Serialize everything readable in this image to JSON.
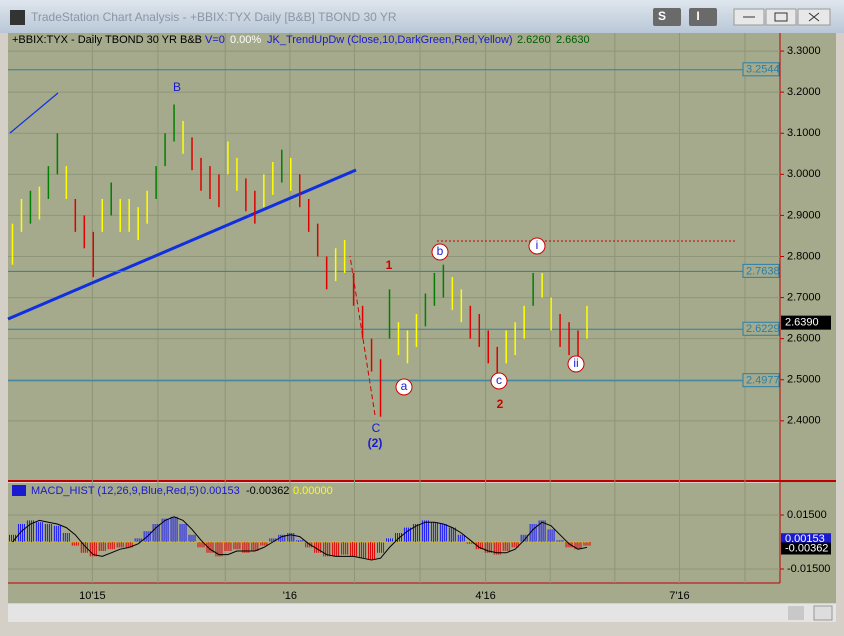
{
  "window": {
    "title": "TradeStation Chart Analysis - +BBIX:TYX Daily [B&B] TBOND 30 YR",
    "buttons": [
      "S",
      "I"
    ]
  },
  "chart_data": [
    {
      "type": "ohlc",
      "header": {
        "symbol": "+BBIX:TYX - Daily  TBOND 30 YR  B&B",
        "volume": "V=0",
        "change": "0.00%",
        "indicator": "JK_TrendUpDw (Close,10,DarkGreen,Red,Yellow)",
        "value1": "2.6260",
        "value2": "2.6630"
      },
      "high": [
        2.88,
        2.94,
        2.96,
        2.97,
        3.02,
        3.1,
        3.02,
        2.94,
        2.9,
        2.86,
        2.94,
        2.98,
        2.94,
        2.94,
        2.92,
        2.96,
        3.02,
        3.1,
        3.17,
        3.13,
        3.09,
        3.04,
        3.02,
        3.0,
        3.08,
        3.04,
        2.99,
        2.96,
        3.0,
        3.03,
        3.06,
        3.04,
        3.0,
        2.94,
        2.88,
        2.8,
        2.82,
        2.84,
        2.76,
        2.68,
        2.6,
        2.55,
        2.72,
        2.64,
        2.62,
        2.66,
        2.71,
        2.76,
        2.78,
        2.75,
        2.72,
        2.68,
        2.66,
        2.62,
        2.58,
        2.62,
        2.64,
        2.68,
        2.76,
        2.76,
        2.7,
        2.66,
        2.64,
        2.62,
        2.68
      ],
      "low": [
        2.78,
        2.86,
        2.88,
        2.89,
        2.94,
        3.0,
        2.94,
        2.86,
        2.82,
        2.75,
        2.86,
        2.9,
        2.86,
        2.86,
        2.84,
        2.88,
        2.94,
        3.02,
        3.08,
        3.05,
        3.01,
        2.96,
        2.94,
        2.92,
        3.0,
        2.96,
        2.91,
        2.88,
        2.92,
        2.95,
        2.98,
        2.96,
        2.92,
        2.86,
        2.8,
        2.72,
        2.74,
        2.76,
        2.68,
        2.6,
        2.52,
        2.41,
        2.6,
        2.56,
        2.54,
        2.58,
        2.63,
        2.68,
        2.7,
        2.67,
        2.64,
        2.6,
        2.58,
        2.54,
        2.5,
        2.54,
        2.56,
        2.6,
        2.68,
        2.7,
        2.62,
        2.58,
        2.56,
        2.54,
        2.6
      ],
      "colors": [
        "#ffff00",
        "#ffff00",
        "#008000",
        "#ffff00",
        "#008000",
        "#008000",
        "#ffff00",
        "#e00000",
        "#e00000",
        "#e00000",
        "#ffff00",
        "#008000",
        "#ffff00",
        "#ffff00",
        "#ffff00",
        "#ffff00",
        "#008000",
        "#008000",
        "#008000",
        "#ffff00",
        "#e00000",
        "#e00000",
        "#e00000",
        "#e00000",
        "#ffff00",
        "#ffff00",
        "#e00000",
        "#e00000",
        "#ffff00",
        "#ffff00",
        "#008000",
        "#ffff00",
        "#e00000",
        "#e00000",
        "#e00000",
        "#e00000",
        "#ffff00",
        "#ffff00",
        "#e00000",
        "#e00000",
        "#e00000",
        "#e00000",
        "#008000",
        "#ffff00",
        "#ffff00",
        "#ffff00",
        "#008000",
        "#008000",
        "#008000",
        "#ffff00",
        "#ffff00",
        "#e00000",
        "#e00000",
        "#e00000",
        "#e00000",
        "#ffff00",
        "#ffff00",
        "#ffff00",
        "#008000",
        "#ffff00",
        "#ffff00",
        "#e00000",
        "#e00000",
        "#e00000",
        "#ffff00"
      ],
      "xlim": [
        -0.5,
        85.5
      ],
      "ylim": [
        2.256,
        3.344
      ],
      "yticks": [
        {
          "value": 3.3,
          "label": "3.3000"
        },
        {
          "value": 3.2,
          "label": "3.2000"
        },
        {
          "value": 3.1,
          "label": "3.1000"
        },
        {
          "value": 3.0,
          "label": "3.0000"
        },
        {
          "value": 2.9,
          "label": "2.9000"
        },
        {
          "value": 2.8,
          "label": "2.8000"
        },
        {
          "value": 2.7,
          "label": "2.7000"
        },
        {
          "value": 2.6,
          "label": "2.6000"
        },
        {
          "value": 2.5,
          "label": "2.5000"
        },
        {
          "value": 2.4,
          "label": "2.4000"
        }
      ],
      "levels": [
        3.2544,
        2.7638,
        2.6229,
        2.4977
      ],
      "level_color": "#2a7fa8",
      "last_price": {
        "value": 2.639,
        "label": "2.6390"
      },
      "annotations": [
        "B",
        "1",
        "C",
        "(2)",
        "a",
        "b",
        "c",
        "2",
        "i",
        "ii"
      ]
    },
    {
      "type": "macd_hist",
      "header": {
        "name": "MACD_HIST (12,26,9,Blue,Red,5)",
        "value1": "0.00153",
        "value2": "-0.00362",
        "value3": "0.00000"
      },
      "values": [
        0.004,
        0.01,
        0.012,
        0.011,
        0.01,
        0.009,
        0.005,
        -0.002,
        -0.006,
        -0.008,
        -0.005,
        -0.004,
        -0.003,
        -0.003,
        0.002,
        0.006,
        0.01,
        0.013,
        0.014,
        0.01,
        0.004,
        -0.003,
        -0.006,
        -0.008,
        -0.005,
        -0.004,
        -0.006,
        -0.005,
        -0.002,
        0.002,
        0.004,
        0.005,
        0.001,
        -0.003,
        -0.006,
        -0.008,
        -0.008,
        -0.007,
        -0.008,
        -0.009,
        -0.01,
        -0.006,
        0.002,
        0.005,
        0.008,
        0.01,
        0.012,
        0.011,
        0.01,
        0.008,
        0.004,
        -0.001,
        -0.004,
        -0.006,
        -0.007,
        -0.005,
        -0.003,
        0.004,
        0.01,
        0.012,
        0.007,
        0.001,
        -0.003,
        -0.004,
        -0.002
      ],
      "line": [
        0.0,
        0.006,
        0.01,
        0.012,
        0.011,
        0.01,
        0.008,
        0.004,
        -0.002,
        -0.007,
        -0.008,
        -0.006,
        -0.004,
        -0.003,
        -0.001,
        0.003,
        0.008,
        0.012,
        0.014,
        0.012,
        0.007,
        0.001,
        -0.004,
        -0.007,
        -0.007,
        -0.005,
        -0.005,
        -0.005,
        -0.003,
        0.0,
        0.003,
        0.004,
        0.003,
        -0.001,
        -0.004,
        -0.007,
        -0.008,
        -0.008,
        -0.008,
        -0.009,
        -0.01,
        -0.009,
        -0.003,
        0.002,
        0.006,
        0.009,
        0.011,
        0.011,
        0.01,
        0.008,
        0.005,
        0.001,
        -0.003,
        -0.005,
        -0.006,
        -0.006,
        -0.004,
        0.001,
        0.007,
        0.011,
        0.009,
        0.004,
        -0.001,
        -0.004,
        -0.003
      ],
      "up_color": "#1a1aff",
      "down_color": "#e00000",
      "line_color": "#000000",
      "xlim": [
        -0.5,
        85.5
      ],
      "ylim": [
        -0.0228,
        0.0328
      ],
      "yticks": [
        {
          "value": 0.015,
          "label": "0.01500"
        },
        {
          "value": -0.015,
          "label": "-0.01500"
        }
      ],
      "value_boxes": [
        {
          "value": 0.00153,
          "label": "0.00153"
        },
        {
          "value": -0.00362,
          "label": "-0.00362"
        }
      ],
      "xticks": [
        {
          "value": 8.9,
          "label": "10'15"
        },
        {
          "value": 30.9,
          "label": "'16"
        },
        {
          "value": 52.7,
          "label": "4'16"
        },
        {
          "value": 74.3,
          "label": "7'16"
        }
      ],
      "xminor": [
        16.2,
        23.7,
        38.1,
        45.4,
        59.9,
        67.1,
        81.6
      ]
    }
  ]
}
